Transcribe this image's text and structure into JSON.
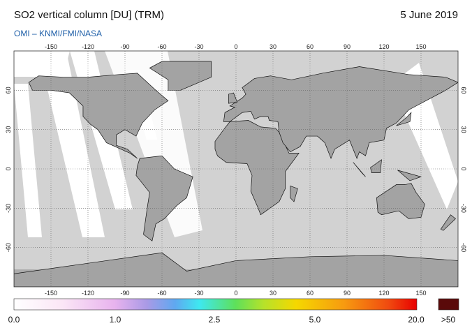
{
  "header": {
    "title": "SO2 vertical column [DU] (TRM)",
    "source": "OMI  –  KNMI/FMI/NASA",
    "date": "5 June 2019"
  },
  "map": {
    "lon_ticks": [
      -150,
      -120,
      -90,
      -60,
      -30,
      0,
      30,
      60,
      90,
      120,
      150
    ],
    "lat_ticks": [
      60,
      30,
      0,
      -30,
      -60
    ]
  },
  "colorbar": {
    "labels": [
      "0.0",
      "1.0",
      "2.5",
      "5.0",
      "20.0",
      ">50"
    ]
  }
}
